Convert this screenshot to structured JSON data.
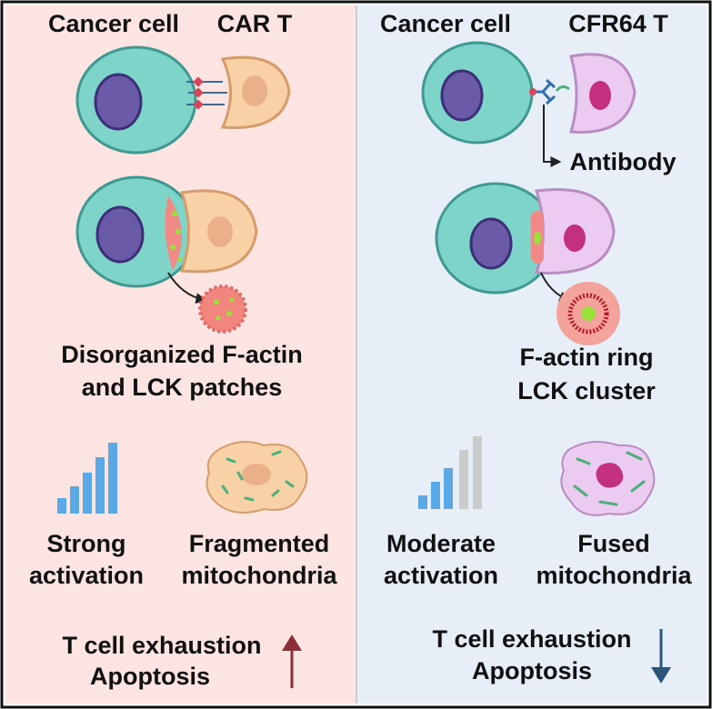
{
  "left": {
    "cancer_label": "Cancer cell",
    "tcell_label": "CAR T",
    "synapse_lines": [
      "Disorganized F-actin",
      "and LCK patches"
    ],
    "activation": [
      "Strong",
      "activation"
    ],
    "mitochondria": [
      "Fragmented",
      "mitochondria"
    ],
    "outcome": [
      "T cell exhaustion",
      "Apoptosis"
    ]
  },
  "right": {
    "cancer_label": "Cancer cell",
    "tcell_label": "CFR64 T",
    "antibody_label": "Antibody",
    "synapse_lines": [
      "F-actin ring",
      "LCK cluster"
    ],
    "activation": [
      "Moderate",
      "activation"
    ],
    "mitochondria": [
      "Fused",
      "mitochondria"
    ],
    "outcome": [
      "T cell exhaustion",
      "Apoptosis"
    ]
  }
}
